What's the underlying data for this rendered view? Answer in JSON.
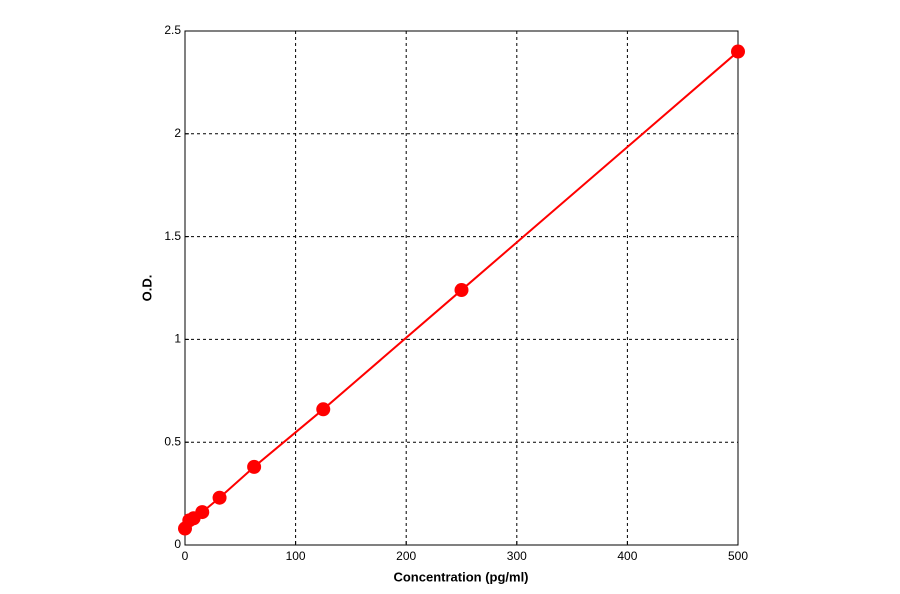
{
  "chart_data": {
    "type": "scatter",
    "x_label": "Concentration (pg/ml)",
    "y_label": "O.D.",
    "x": [
      0,
      3.9,
      7.8,
      15.6,
      31.25,
      62.5,
      125,
      250,
      500
    ],
    "series": [
      {
        "color": "#ff0000",
        "values": [
          0.08,
          0.12,
          0.13,
          0.16,
          0.23,
          0.38,
          0.66,
          1.24,
          2.4
        ]
      }
    ],
    "xlim": [
      0,
      500
    ],
    "xticks": [
      0,
      100,
      200,
      300,
      400,
      500
    ],
    "ylim": [
      0,
      2.5
    ],
    "yticks": [
      0,
      0.5,
      1,
      1.5,
      2,
      2.5
    ],
    "grid": true
  }
}
